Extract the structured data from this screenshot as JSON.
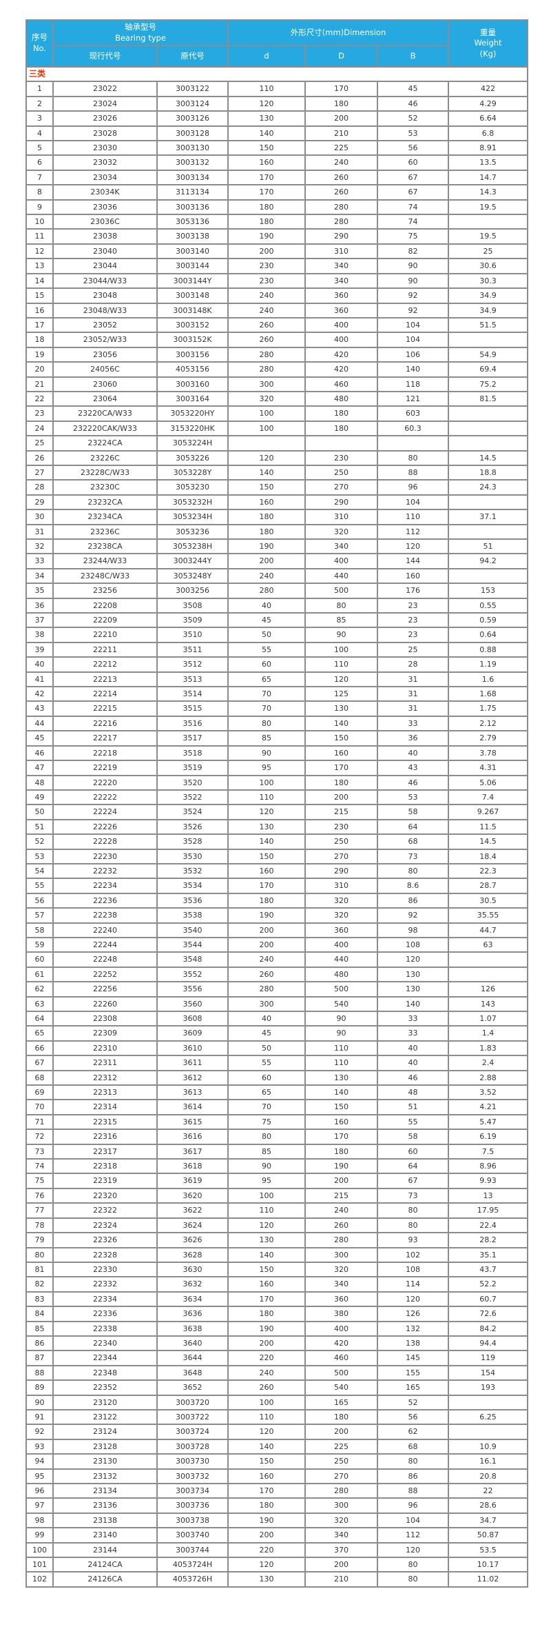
{
  "colors": {
    "header_bg": "#25a9e0",
    "header_text": "#ffffff",
    "category_text": "#e8380d",
    "body_text": "#363636",
    "border": "#8c8c8c",
    "outer_border": "#4a4a4a"
  },
  "table": {
    "header": {
      "no_zh": "序号",
      "no_en": "No.",
      "bearing_type_zh": "轴承型号",
      "bearing_type_en": "Bearing type",
      "current_code": "现行代号",
      "original_code": "原代号",
      "dimension": "外形尺寸(mm)Dimension",
      "d": "d",
      "D": "D",
      "B": "B",
      "weight_zh": "重量",
      "weight_en": "Weight",
      "weight_unit": "(Kg)"
    },
    "category_label": "三类",
    "columns": [
      "No.",
      "现行代号",
      "原代号",
      "d",
      "D",
      "B",
      "Weight(Kg)"
    ],
    "rows": [
      [
        "1",
        "23022",
        "3003122",
        "110",
        "170",
        "45",
        "422"
      ],
      [
        "2",
        "23024",
        "3003124",
        "120",
        "180",
        "46",
        "4.29"
      ],
      [
        "3",
        "23026",
        "3003126",
        "130",
        "200",
        "52",
        "6.64"
      ],
      [
        "4",
        "23028",
        "3003128",
        "140",
        "210",
        "53",
        "6.8"
      ],
      [
        "5",
        "23030",
        "3003130",
        "150",
        "225",
        "56",
        "8.91"
      ],
      [
        "6",
        "23032",
        "3003132",
        "160",
        "240",
        "60",
        "13.5"
      ],
      [
        "7",
        "23034",
        "3003134",
        "170",
        "260",
        "67",
        "14.7"
      ],
      [
        "8",
        "23034K",
        "3113134",
        "170",
        "260",
        "67",
        "14.3"
      ],
      [
        "9",
        "23036",
        "3003136",
        "180",
        "280",
        "74",
        "19.5"
      ],
      [
        "10",
        "23036C",
        "3053136",
        "180",
        "280",
        "74",
        ""
      ],
      [
        "11",
        "23038",
        "3003138",
        "190",
        "290",
        "75",
        "19.5"
      ],
      [
        "12",
        "23040",
        "3003140",
        "200",
        "310",
        "82",
        "25"
      ],
      [
        "13",
        "23044",
        "3003144",
        "230",
        "340",
        "90",
        "30.6"
      ],
      [
        "14",
        "23044/W33",
        "3003144Y",
        "230",
        "340",
        "90",
        "30.3"
      ],
      [
        "15",
        "23048",
        "3003148",
        "240",
        "360",
        "92",
        "34.9"
      ],
      [
        "16",
        "23048/W33",
        "3003148K",
        "240",
        "360",
        "92",
        "34.9"
      ],
      [
        "17",
        "23052",
        "3003152",
        "260",
        "400",
        "104",
        "51.5"
      ],
      [
        "18",
        "23052/W33",
        "3003152K",
        "260",
        "400",
        "104",
        ""
      ],
      [
        "19",
        "23056",
        "3003156",
        "280",
        "420",
        "106",
        "54.9"
      ],
      [
        "20",
        "24056C",
        "4053156",
        "280",
        "420",
        "140",
        "69.4"
      ],
      [
        "21",
        "23060",
        "3003160",
        "300",
        "460",
        "118",
        "75.2"
      ],
      [
        "22",
        "23064",
        "3003164",
        "320",
        "480",
        "121",
        "81.5"
      ],
      [
        "23",
        "23220CA/W33",
        "3053220HY",
        "100",
        "180",
        "603",
        ""
      ],
      [
        "24",
        "232220CAK/W33",
        "3153220HK",
        "100",
        "180",
        "60.3",
        ""
      ],
      [
        "25",
        "23224CA",
        "3053224H",
        "",
        "",
        "",
        ""
      ],
      [
        "26",
        "23226C",
        "3053226",
        "120",
        "230",
        "80",
        "14.5"
      ],
      [
        "27",
        "23228C/W33",
        "3053228Y",
        "140",
        "250",
        "88",
        "18.8"
      ],
      [
        "28",
        "23230C",
        "3053230",
        "150",
        "270",
        "96",
        "24.3"
      ],
      [
        "29",
        "23232CA",
        "3053232H",
        "160",
        "290",
        "104",
        ""
      ],
      [
        "30",
        "23234CA",
        "3053234H",
        "180",
        "310",
        "110",
        "37.1"
      ],
      [
        "31",
        "23236C",
        "3053236",
        "180",
        "320",
        "112",
        ""
      ],
      [
        "32",
        "23238CA",
        "3053238H",
        "190",
        "340",
        "120",
        "51"
      ],
      [
        "33",
        "23244/W33",
        "3003244Y",
        "200",
        "400",
        "144",
        "94.2"
      ],
      [
        "34",
        "23248C/W33",
        "3053248Y",
        "240",
        "440",
        "160",
        ""
      ],
      [
        "35",
        "23256",
        "3003256",
        "280",
        "500",
        "176",
        "153"
      ],
      [
        "36",
        "22208",
        "3508",
        "40",
        "80",
        "23",
        "0.55"
      ],
      [
        "37",
        "22209",
        "3509",
        "45",
        "85",
        "23",
        "0.59"
      ],
      [
        "38",
        "22210",
        "3510",
        "50",
        "90",
        "23",
        "0.64"
      ],
      [
        "39",
        "22211",
        "3511",
        "55",
        "100",
        "25",
        "0.88"
      ],
      [
        "40",
        "22212",
        "3512",
        "60",
        "110",
        "28",
        "1.19"
      ],
      [
        "41",
        "22213",
        "3513",
        "65",
        "120",
        "31",
        "1.6"
      ],
      [
        "42",
        "22214",
        "3514",
        "70",
        "125",
        "31",
        "1.68"
      ],
      [
        "43",
        "22215",
        "3515",
        "70",
        "130",
        "31",
        "1.75"
      ],
      [
        "44",
        "22216",
        "3516",
        "80",
        "140",
        "33",
        "2.12"
      ],
      [
        "45",
        "22217",
        "3517",
        "85",
        "150",
        "36",
        "2.79"
      ],
      [
        "46",
        "22218",
        "3518",
        "90",
        "160",
        "40",
        "3.78"
      ],
      [
        "47",
        "22219",
        "3519",
        "95",
        "170",
        "43",
        "4.31"
      ],
      [
        "48",
        "22220",
        "3520",
        "100",
        "180",
        "46",
        "5.06"
      ],
      [
        "49",
        "22222",
        "3522",
        "110",
        "200",
        "53",
        "7.4"
      ],
      [
        "50",
        "22224",
        "3524",
        "120",
        "215",
        "58",
        "9.267"
      ],
      [
        "51",
        "22226",
        "3526",
        "130",
        "230",
        "64",
        "11.5"
      ],
      [
        "52",
        "22228",
        "3528",
        "140",
        "250",
        "68",
        "14.5"
      ],
      [
        "53",
        "22230",
        "3530",
        "150",
        "270",
        "73",
        "18.4"
      ],
      [
        "54",
        "22232",
        "3532",
        "160",
        "290",
        "80",
        "22.3"
      ],
      [
        "55",
        "22234",
        "3534",
        "170",
        "310",
        "8.6",
        "28.7"
      ],
      [
        "56",
        "22236",
        "3536",
        "180",
        "320",
        "86",
        "30.5"
      ],
      [
        "57",
        "22238",
        "3538",
        "190",
        "320",
        "92",
        "35.55"
      ],
      [
        "58",
        "22240",
        "3540",
        "200",
        "360",
        "98",
        "44.7"
      ],
      [
        "59",
        "22244",
        "3544",
        "200",
        "400",
        "108",
        "63"
      ],
      [
        "60",
        "22248",
        "3548",
        "240",
        "440",
        "120",
        ""
      ],
      [
        "61",
        "22252",
        "3552",
        "260",
        "480",
        "130",
        ""
      ],
      [
        "62",
        "22256",
        "3556",
        "280",
        "500",
        "130",
        "126"
      ],
      [
        "63",
        "22260",
        "3560",
        "300",
        "540",
        "140",
        "143"
      ],
      [
        "64",
        "22308",
        "3608",
        "40",
        "90",
        "33",
        "1.07"
      ],
      [
        "65",
        "22309",
        "3609",
        "45",
        "90",
        "33",
        "1.4"
      ],
      [
        "66",
        "22310",
        "3610",
        "50",
        "110",
        "40",
        "1.83"
      ],
      [
        "67",
        "22311",
        "3611",
        "55",
        "110",
        "40",
        "2.4"
      ],
      [
        "68",
        "22312",
        "3612",
        "60",
        "130",
        "46",
        "2.88"
      ],
      [
        "69",
        "22313",
        "3613",
        "65",
        "140",
        "48",
        "3.52"
      ],
      [
        "70",
        "22314",
        "3614",
        "70",
        "150",
        "51",
        "4.21"
      ],
      [
        "71",
        "22315",
        "3615",
        "75",
        "160",
        "55",
        "5.47"
      ],
      [
        "72",
        "22316",
        "3616",
        "80",
        "170",
        "58",
        "6.19"
      ],
      [
        "73",
        "22317",
        "3617",
        "85",
        "180",
        "60",
        "7.5"
      ],
      [
        "74",
        "22318",
        "3618",
        "90",
        "190",
        "64",
        "8.96"
      ],
      [
        "75",
        "22319",
        "3619",
        "95",
        "200",
        "67",
        "9.93"
      ],
      [
        "76",
        "22320",
        "3620",
        "100",
        "215",
        "73",
        "13"
      ],
      [
        "77",
        "22322",
        "3622",
        "110",
        "240",
        "80",
        "17.95"
      ],
      [
        "78",
        "22324",
        "3624",
        "120",
        "260",
        "80",
        "22.4"
      ],
      [
        "79",
        "22326",
        "3626",
        "130",
        "280",
        "93",
        "28.2"
      ],
      [
        "80",
        "22328",
        "3628",
        "140",
        "300",
        "102",
        "35.1"
      ],
      [
        "81",
        "22330",
        "3630",
        "150",
        "320",
        "108",
        "43.7"
      ],
      [
        "82",
        "22332",
        "3632",
        "160",
        "340",
        "114",
        "52.2"
      ],
      [
        "83",
        "22334",
        "3634",
        "170",
        "360",
        "120",
        "60.7"
      ],
      [
        "84",
        "22336",
        "3636",
        "180",
        "380",
        "126",
        "72.6"
      ],
      [
        "85",
        "22338",
        "3638",
        "190",
        "400",
        "132",
        "84.2"
      ],
      [
        "86",
        "22340",
        "3640",
        "200",
        "420",
        "138",
        "94.4"
      ],
      [
        "87",
        "22344",
        "3644",
        "220",
        "460",
        "145",
        "119"
      ],
      [
        "88",
        "22348",
        "3648",
        "240",
        "500",
        "155",
        "154"
      ],
      [
        "89",
        "22352",
        "3652",
        "260",
        "540",
        "165",
        "193"
      ],
      [
        "90",
        "23120",
        "3003720",
        "100",
        "165",
        "52",
        ""
      ],
      [
        "91",
        "23122",
        "3003722",
        "110",
        "180",
        "56",
        "6.25"
      ],
      [
        "92",
        "23124",
        "3003724",
        "120",
        "200",
        "62",
        ""
      ],
      [
        "93",
        "23128",
        "3003728",
        "140",
        "225",
        "68",
        "10.9"
      ],
      [
        "94",
        "23130",
        "3003730",
        "150",
        "250",
        "80",
        "16.1"
      ],
      [
        "95",
        "23132",
        "3003732",
        "160",
        "270",
        "86",
        "20.8"
      ],
      [
        "96",
        "23134",
        "3003734",
        "170",
        "280",
        "88",
        "22"
      ],
      [
        "97",
        "23136",
        "3003736",
        "180",
        "300",
        "96",
        "28.6"
      ],
      [
        "98",
        "23138",
        "3003738",
        "190",
        "320",
        "104",
        "34.7"
      ],
      [
        "99",
        "23140",
        "3003740",
        "200",
        "340",
        "112",
        "50.87"
      ],
      [
        "100",
        "23144",
        "3003744",
        "220",
        "370",
        "120",
        "53.5"
      ],
      [
        "101",
        "24124CA",
        "4053724H",
        "120",
        "200",
        "80",
        "10.17"
      ],
      [
        "102",
        "24126CA",
        "4053726H",
        "130",
        "210",
        "80",
        "11.02"
      ]
    ]
  }
}
